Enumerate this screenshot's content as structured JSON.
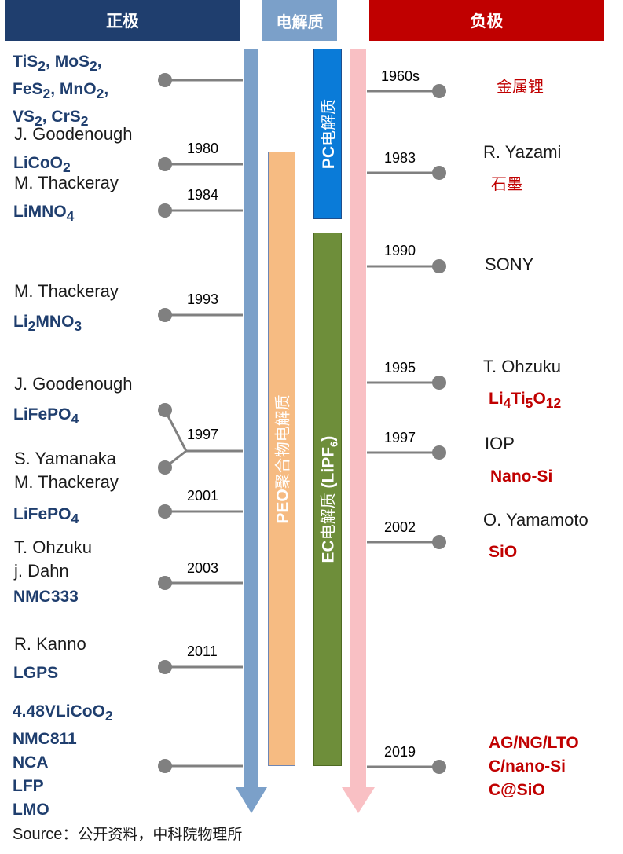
{
  "headers": {
    "cathode": "正极",
    "electrolyte": "电解质",
    "anode": "负极"
  },
  "electrolytes": {
    "pc": "PC电解质",
    "ec": "EC电解质 (LiPF6)",
    "peo": "PEO聚合物电解质"
  },
  "cathode_events": [
    {
      "year": "",
      "compound": "TiS2, MoS2, FeS2, MnO2, VS2, CrS2"
    },
    {
      "year": "1980",
      "person": "J. Goodenough",
      "compound": "LiCoO2"
    },
    {
      "year": "1984",
      "person": "M. Thackeray",
      "compound": "LiMNO4"
    },
    {
      "year": "1993",
      "person": "M. Thackeray",
      "compound": "Li2MNO3"
    },
    {
      "year": "1997",
      "person": "J. Goodenough",
      "compound": "LiFePO4",
      "person2": "S. Yamanaka"
    },
    {
      "year": "2001",
      "person": "M. Thackeray",
      "compound": "LiFePO4"
    },
    {
      "year": "2003",
      "person": "T. Ohzuku",
      "person2": "j. Dahn",
      "compound": "NMC333"
    },
    {
      "year": "2011",
      "person": "R. Kanno",
      "compound": "LGPS"
    },
    {
      "year": "",
      "compounds": [
        "4.48VLiCoO2",
        "NMC811",
        "NCA",
        "LFP",
        "LMO"
      ]
    }
  ],
  "anode_events": [
    {
      "year": "1960s",
      "material": "金属锂"
    },
    {
      "year": "1983",
      "person": "R. Yazami",
      "material": "石墨"
    },
    {
      "year": "1990",
      "person": "SONY"
    },
    {
      "year": "1995",
      "person": "T. Ohzuku",
      "material": "Li4Ti5O12"
    },
    {
      "year": "1997",
      "person": "IOP",
      "material": "Nano-Si"
    },
    {
      "year": "2002",
      "person": "O. Yamamoto",
      "material": "SiO"
    },
    {
      "year": "2019",
      "materials": [
        "AG/NG/LTO",
        "C/nano-Si",
        "C@SiO"
      ]
    }
  ],
  "source": {
    "prefix": "Source：",
    "text": "公开资料，中科院物理所"
  },
  "colors": {
    "cathode_header": "#1f3e6e",
    "electrolyte_header": "#7ba0c9",
    "anode_header": "#c00000",
    "cathode_axis": "#7ba0c9",
    "anode_axis": "#f9c0c4",
    "pc_bar": "#0a7bd8",
    "ec_bar": "#6e8e3a",
    "peo_bar": "#f6bb82",
    "connector": "#808080"
  }
}
